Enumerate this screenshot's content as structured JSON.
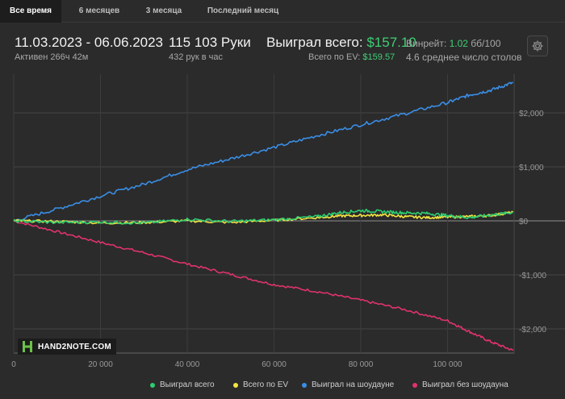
{
  "tabs": [
    {
      "label": "Все время",
      "active": true
    },
    {
      "label": "6 месяцев",
      "active": false
    },
    {
      "label": "3 месяца",
      "active": false
    },
    {
      "label": "Последний месяц",
      "active": false
    }
  ],
  "stats": {
    "date_range": "11.03.2023 - 06.06.2023",
    "active": "Активен 266ч 42м",
    "hands": "115 103 Руки",
    "hands_per_hour": "432 рук в час",
    "won_total_label": "Выиграл всего:",
    "won_total_value": "$157.10",
    "ev_label": "Всего по EV:",
    "ev_value": "$159.57",
    "winrate_label": "Винрейт:",
    "winrate_value": "1.02",
    "winrate_unit": "бб/100",
    "tables": "4.6 среднее число столов"
  },
  "settings_icon": "gear-icon",
  "logo": {
    "text": "HAND2NOTE.COM"
  },
  "colors": {
    "won_total": "#2ecc71",
    "ev": "#f4e542",
    "showdown": "#3a8ee6",
    "non_showdown": "#e0336b"
  },
  "chart_data": {
    "type": "line",
    "x_ticks": [
      "0",
      "20 000",
      "40 000",
      "60 000",
      "80 000",
      "100 000"
    ],
    "y_ticks": [
      "$2,000",
      "$1,000",
      "$0",
      "-$1,000",
      "-$2,000"
    ],
    "xlim": [
      0,
      115103
    ],
    "ylim": [
      -2400,
      2600
    ],
    "grid": true,
    "legend_position": "bottom",
    "series": [
      {
        "name": "Выиграл всего",
        "color": "#2ecc71",
        "x": [
          0,
          10000,
          20000,
          30000,
          40000,
          50000,
          60000,
          70000,
          75000,
          80000,
          85000,
          90000,
          95000,
          100000,
          105000,
          110000,
          115103
        ],
        "y": [
          0,
          -30,
          -20,
          -40,
          30,
          -10,
          20,
          80,
          150,
          190,
          170,
          150,
          140,
          100,
          60,
          110,
          157
        ]
      },
      {
        "name": "Всего по EV",
        "color": "#f4e542",
        "x": [
          0,
          10000,
          20000,
          30000,
          40000,
          50000,
          60000,
          70000,
          75000,
          80000,
          85000,
          90000,
          95000,
          100000,
          105000,
          110000,
          115103
        ],
        "y": [
          0,
          -10,
          -40,
          -30,
          0,
          -30,
          10,
          60,
          90,
          100,
          110,
          80,
          60,
          70,
          80,
          100,
          160
        ]
      },
      {
        "name": "Выиграл на шоудауне",
        "color": "#3a8ee6",
        "x": [
          0,
          10000,
          20000,
          30000,
          40000,
          50000,
          60000,
          70000,
          80000,
          90000,
          100000,
          105000,
          110000,
          115103
        ],
        "y": [
          0,
          220,
          460,
          680,
          950,
          1150,
          1360,
          1580,
          1780,
          1980,
          2190,
          2330,
          2420,
          2560
        ]
      },
      {
        "name": "Выиграл без шоудауна",
        "color": "#e0336b",
        "x": [
          0,
          10000,
          20000,
          30000,
          40000,
          50000,
          60000,
          70000,
          80000,
          90000,
          100000,
          105000,
          110000,
          115103
        ],
        "y": [
          0,
          -200,
          -400,
          -590,
          -800,
          -990,
          -1180,
          -1310,
          -1470,
          -1640,
          -1850,
          -2050,
          -2240,
          -2400
        ]
      }
    ]
  }
}
